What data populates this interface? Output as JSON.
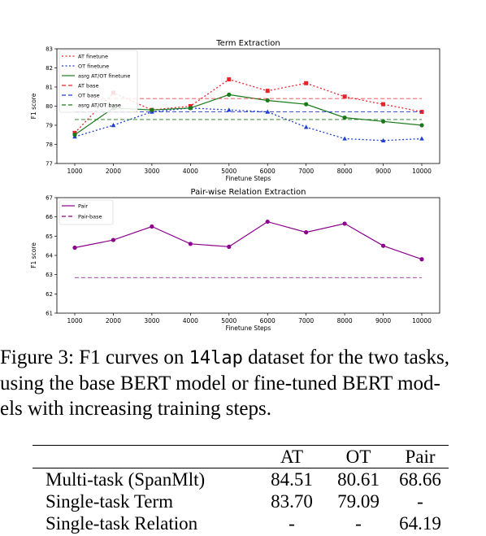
{
  "chart_data": [
    {
      "type": "line",
      "title": "Term Extraction",
      "xlabel": "Finetune Steps",
      "ylabel": "F1 score",
      "x": [
        1000,
        2000,
        3000,
        4000,
        5000,
        6000,
        7000,
        8000,
        9000,
        10000
      ],
      "xticks": [
        "1000",
        "2000",
        "3000",
        "4000",
        "5000",
        "6000",
        "7000",
        "8000",
        "9000",
        "10000"
      ],
      "ylim": [
        77,
        83
      ],
      "yticks": [
        "77",
        "78",
        "79",
        "80",
        "81",
        "82",
        "83"
      ],
      "legend_position": "upper-left",
      "grid": false,
      "series": [
        {
          "name": "AT finetune",
          "style": "dotted",
          "marker": "square",
          "color": "#e8232b",
          "values": [
            78.6,
            80.7,
            79.8,
            80.0,
            81.4,
            80.8,
            81.2,
            80.5,
            80.1,
            79.7
          ]
        },
        {
          "name": "OT finetune",
          "style": "dotted",
          "marker": "triangle",
          "color": "#1f3fd0",
          "values": [
            78.4,
            79.0,
            79.7,
            79.9,
            79.8,
            79.7,
            78.9,
            78.3,
            78.2,
            78.3
          ]
        },
        {
          "name": "asrg AT/OT finetune",
          "style": "solid",
          "marker": "circle",
          "color": "#1a7a1a",
          "values": [
            78.5,
            79.9,
            79.8,
            79.9,
            80.6,
            80.3,
            80.1,
            79.4,
            79.2,
            79.0
          ]
        },
        {
          "name": "AT base",
          "style": "dashed",
          "marker": "none",
          "color": "#e8232b",
          "value": 80.4
        },
        {
          "name": "OT base",
          "style": "dashed",
          "marker": "none",
          "color": "#1f3fd0",
          "value": 79.7
        },
        {
          "name": "asrg AT/OT base",
          "style": "dashed",
          "marker": "none",
          "color": "#1a7a1a",
          "value": 79.3
        }
      ]
    },
    {
      "type": "line",
      "title": "Pair-wise Relation Extraction",
      "xlabel": "Finetune Steps",
      "ylabel": "F1 score",
      "x": [
        1000,
        2000,
        3000,
        4000,
        5000,
        6000,
        7000,
        8000,
        9000,
        10000
      ],
      "xticks": [
        "1000",
        "2000",
        "3000",
        "4000",
        "5000",
        "6000",
        "7000",
        "8000",
        "9000",
        "10000"
      ],
      "ylim": [
        61,
        67
      ],
      "yticks": [
        "61",
        "62",
        "63",
        "64",
        "65",
        "66",
        "67"
      ],
      "legend_position": "upper-left",
      "grid": false,
      "series": [
        {
          "name": "Pair",
          "style": "solid",
          "marker": "circle",
          "color": "#8b008b",
          "values": [
            64.4,
            64.8,
            65.5,
            64.6,
            64.45,
            65.75,
            65.2,
            65.65,
            64.5,
            63.8
          ]
        },
        {
          "name": "Pair-base",
          "style": "dashed",
          "marker": "none",
          "color": "#8b008b",
          "value": 62.85
        }
      ]
    }
  ],
  "caption": {
    "prefix": "Figure 3: F1 curves on ",
    "dataset": "14lap",
    "suffix": " dataset for the two tasks,",
    "line2": "using the base BERT model or fine-tuned BERT mod-",
    "line3": "els with increasing training steps."
  },
  "table": {
    "headers": [
      "",
      "AT",
      "OT",
      "Pair"
    ],
    "rows": [
      [
        "Multi-task (SpanMlt)",
        "84.51",
        "80.61",
        "68.66"
      ],
      [
        "Single-task Term",
        "83.70",
        "79.09",
        "-"
      ],
      [
        "Single-task Relation",
        "-",
        "-",
        "64.19"
      ]
    ]
  }
}
